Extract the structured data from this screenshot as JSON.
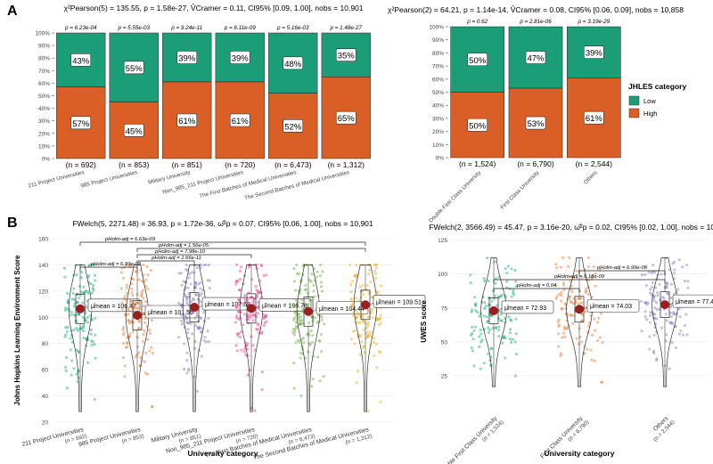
{
  "panel_labels": [
    "A",
    "B"
  ],
  "colors": {
    "low": "#1b9e77",
    "high": "#d95f26",
    "outline": "#333333",
    "violin": [
      "#18a37a",
      "#e0772e",
      "#8477b8",
      "#e33a8c",
      "#6aa83a",
      "#e6ab16"
    ],
    "violin_right": [
      "#18a37a",
      "#e0772e",
      "#8477b8"
    ],
    "mean_dot": "#9a1f1f"
  },
  "legend": {
    "title": "JHLES category",
    "items": [
      {
        "label": "Low"
      },
      {
        "label": "High"
      }
    ]
  },
  "chart_data": [
    {
      "id": "A_left",
      "type": "bar",
      "stacked": true,
      "title": "χ²Pearson(5) = 135.55, p = 1.58e-27, V̂Cramer = 0.11, CI95% [0.09, 1.00], nobs = 10,901",
      "yticks": [
        "0%",
        "10%",
        "20%",
        "30%",
        "40%",
        "50%",
        "60%",
        "70%",
        "80%",
        "90%",
        "100%"
      ],
      "ylim": [
        0,
        100
      ],
      "categories": [
        "211 Project Universities",
        "985 Project Universities",
        "Military University",
        "Non_985_211 Project Universities",
        "The First Batches of Medical Universities",
        "The Second Batches of Medical Universities"
      ],
      "n_labels": [
        "(n = 692)",
        "(n = 853)",
        "(n = 851)",
        "(n = 720)",
        "(n = 6,473)",
        "(n = 1,312)"
      ],
      "pvalues": [
        "p = 6.23e-04",
        "p = 5.55e-03",
        "p = 9.24e-11",
        "p = 6.11e-09",
        "p = 5.16e-03",
        "p = 1.48e-27"
      ],
      "series": [
        {
          "name": "High",
          "values": [
            57,
            45,
            61,
            61,
            52,
            65
          ],
          "labels": [
            "57%",
            "45%",
            "61%",
            "61%",
            "52%",
            "65%"
          ]
        },
        {
          "name": "Low",
          "values": [
            43,
            55,
            39,
            39,
            48,
            35
          ],
          "labels": [
            "43%",
            "55%",
            "39%",
            "39%",
            "48%",
            "35%"
          ]
        }
      ]
    },
    {
      "id": "A_right",
      "type": "bar",
      "stacked": true,
      "title": "χ²Pearson(2) = 64.21, p = 1.14e-14, V̂Cramer = 0.08, CI95% [0.06, 0.09], nobs = 10,858",
      "yticks": [
        "0%",
        "10%",
        "20%",
        "30%",
        "40%",
        "50%",
        "60%",
        "70%",
        "80%",
        "90%",
        "100%"
      ],
      "ylim": [
        0,
        100
      ],
      "categories": [
        "Double First Class University",
        "First Class University",
        "Others"
      ],
      "n_labels": [
        "(n = 1,524)",
        "(n = 6,790)",
        "(n = 2,544)"
      ],
      "pvalues": [
        "p = 0.62",
        "p = 2.81e-06",
        "p = 3.19e-29"
      ],
      "series": [
        {
          "name": "High",
          "values": [
            50,
            53,
            61
          ],
          "labels": [
            "50%",
            "53%",
            "61%"
          ]
        },
        {
          "name": "Low",
          "values": [
            50,
            47,
            39
          ],
          "labels": [
            "50%",
            "47%",
            "39%"
          ]
        }
      ]
    },
    {
      "id": "B_left",
      "type": "violin",
      "title": "FWelch(5, 2271.48) = 36.93, p = 1.72e-36, ω̂²p = 0.07, CI95% [0.06, 1.00], nobs = 10,901",
      "xlabel": "University category",
      "ylabel": "Johns Hopkins Learning Environment Score",
      "ylim": [
        20,
        160
      ],
      "yticks": [
        20,
        40,
        60,
        80,
        100,
        120,
        140,
        160
      ],
      "min": 28,
      "max": 140,
      "categories": [
        "211 Project Universities",
        "985 Project Universities",
        "Military University",
        "Non_985_211 Project Universities",
        "The First Batches of Medical Universities",
        "The Second Batches of Medical Universities"
      ],
      "n_labels": [
        "(n = 692)",
        "(n = 853)",
        "(n = 851)",
        "(n = 720)",
        "(n = 6,473)",
        "(n = 1,312)"
      ],
      "means": [
        106.47,
        101.55,
        107.63,
        106.78,
        104.44,
        109.51
      ],
      "mean_labels": [
        "μ̂mean = 106.47",
        "μ̂mean = 101.55",
        "μ̂mean = 107.63",
        "μ̂mean = 106.78",
        "μ̂mean = 104.44",
        "μ̂mean = 109.51"
      ],
      "comparisons": [
        {
          "from": 0,
          "to": 1,
          "label": "pHolm-adj = 6.99e-08"
        },
        {
          "from": 1,
          "to": 2,
          "label": "pHolm-adj = 1.66e-11"
        },
        {
          "from": 1,
          "to": 3,
          "label": "pHolm-adj = 7.98e-10"
        },
        {
          "from": 1,
          "to": 5,
          "label": "pHolm-adj = 1.56e-05"
        },
        {
          "from": 0,
          "to": 5,
          "label": "pHolm-adj = 6.63e-03"
        }
      ]
    },
    {
      "id": "B_right",
      "type": "violin",
      "title": "FWelch(2, 3566.49) = 45.47, p = 3.16e-20, ω̂²p = 0.02, CI95% [0.02, 1.00], nobs = 10,858",
      "xlabel": "University category",
      "ylabel": "UWES score",
      "ylim": [
        0,
        130
      ],
      "yticks": [
        25,
        50,
        75,
        100,
        125
      ],
      "min": 17,
      "max": 112,
      "categories": [
        "Double First Class University",
        "First Class University",
        "Others"
      ],
      "n_labels": [
        "(n = 1,524)",
        "(n = 6,790)",
        "(n = 2,544)"
      ],
      "means": [
        72.93,
        74.03,
        77.4
      ],
      "mean_labels": [
        "μ̂mean = 72.93",
        "μ̂mean = 74.03",
        "μ̂mean = 77.40"
      ],
      "comparisons": [
        {
          "from": 0,
          "to": 1,
          "label": "pHolm-adj = 0.04"
        },
        {
          "from": 0,
          "to": 2,
          "label": "pHolm-adj = 6.18e-09"
        },
        {
          "from": 1,
          "to": 2,
          "label": "pHolm-adj = 6.99e-08"
        }
      ]
    }
  ]
}
